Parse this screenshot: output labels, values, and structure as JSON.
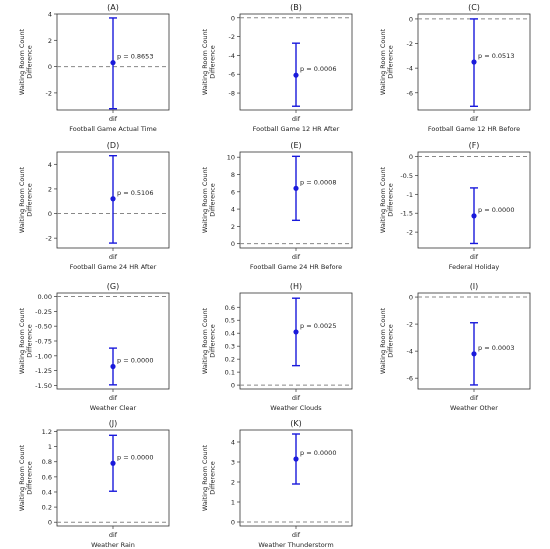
{
  "figure": {
    "panel_ylabel": [
      "Waiting Room Count",
      "Difference"
    ],
    "xtick_label": "dif"
  },
  "chart_data": [
    {
      "type": "errorbar",
      "panel": "(A)",
      "title": "(A)",
      "xlabel": "Football Game Actual Time",
      "ylabel": "Waiting Room Count Difference",
      "x": [
        "dif"
      ],
      "mean": 0.3,
      "lower": -3.2,
      "upper": 3.7,
      "annotation": "p = 0.8653",
      "reference_line": 0,
      "ylim": [
        -3.3,
        4.0
      ],
      "yticks": [
        -2,
        0,
        2,
        4
      ]
    },
    {
      "type": "errorbar",
      "panel": "(B)",
      "title": "(B)",
      "xlabel": "Football Game 12 HR After",
      "ylabel": "Waiting Room Count Difference",
      "x": [
        "dif"
      ],
      "mean": -6.1,
      "lower": -9.4,
      "upper": -2.7,
      "annotation": "p = 0.0006",
      "reference_line": 0,
      "ylim": [
        -9.8,
        0.4
      ],
      "yticks": [
        -8,
        -6,
        -4,
        -2,
        0
      ]
    },
    {
      "type": "errorbar",
      "panel": "(C)",
      "title": "(C)",
      "xlabel": "Football Game 12 HR Before",
      "ylabel": "Waiting Room Count Difference",
      "x": [
        "dif"
      ],
      "mean": -3.5,
      "lower": -7.1,
      "upper": 0.0,
      "annotation": "p = 0.0513",
      "reference_line": 0,
      "ylim": [
        -7.4,
        0.4
      ],
      "yticks": [
        -6,
        -4,
        -2,
        0
      ]
    },
    {
      "type": "errorbar",
      "panel": "(D)",
      "title": "(D)",
      "xlabel": "Football Game 24 HR After",
      "ylabel": "Waiting Room Count Difference",
      "x": [
        "dif"
      ],
      "mean": 1.2,
      "lower": -2.4,
      "upper": 4.7,
      "annotation": "p = 0.5106",
      "reference_line": 0,
      "ylim": [
        -2.8,
        5.0
      ],
      "yticks": [
        -2,
        0,
        2,
        4
      ]
    },
    {
      "type": "errorbar",
      "panel": "(E)",
      "title": "(E)",
      "xlabel": "Football Game 24 HR Before",
      "ylabel": "Waiting Room Count Difference",
      "x": [
        "dif"
      ],
      "mean": 6.4,
      "lower": 2.7,
      "upper": 10.1,
      "annotation": "p = 0.0008",
      "reference_line": 0,
      "ylim": [
        -0.5,
        10.6
      ],
      "yticks": [
        0,
        2,
        4,
        6,
        8,
        10
      ]
    },
    {
      "type": "errorbar",
      "panel": "(F)",
      "title": "(F)",
      "xlabel": "Federal Holiday",
      "ylabel": "Waiting Room Count Difference",
      "x": [
        "dif"
      ],
      "mean": -1.57,
      "lower": -2.3,
      "upper": -0.83,
      "annotation": "p = 0.0000",
      "reference_line": 0,
      "ylim": [
        -2.42,
        0.12
      ],
      "yticks": [
        -2.0,
        -1.5,
        -1.0,
        -0.5,
        0.0
      ]
    },
    {
      "type": "errorbar",
      "panel": "(G)",
      "title": "(G)",
      "xlabel": "Weather Clear",
      "ylabel": "Waiting Room Count Difference",
      "x": [
        "dif"
      ],
      "mean": -1.18,
      "lower": -1.49,
      "upper": -0.87,
      "annotation": "p = 0.0000",
      "reference_line": 0,
      "ylim": [
        -1.56,
        0.06
      ],
      "yticks": [
        -1.5,
        -1.25,
        -1.0,
        -0.75,
        -0.5,
        -0.25,
        0.0
      ],
      "ytick_labels": [
        "-1.50",
        "-1.25",
        "-1.00",
        "-0.75",
        "-0.50",
        "-0.25",
        "0.00"
      ]
    },
    {
      "type": "errorbar",
      "panel": "(H)",
      "title": "(H)",
      "xlabel": "Weather Clouds",
      "ylabel": "Waiting Room Count Difference",
      "x": [
        "dif"
      ],
      "mean": 0.41,
      "lower": 0.15,
      "upper": 0.67,
      "annotation": "p = 0.0025",
      "reference_line": 0,
      "ylim": [
        -0.03,
        0.71
      ],
      "yticks": [
        0.0,
        0.1,
        0.2,
        0.3,
        0.4,
        0.5,
        0.6
      ]
    },
    {
      "type": "errorbar",
      "panel": "(I)",
      "title": "(I)",
      "xlabel": "Weather Other",
      "ylabel": "Waiting Room Count Difference",
      "x": [
        "dif"
      ],
      "mean": -4.2,
      "lower": -6.5,
      "upper": -1.9,
      "annotation": "p = 0.0003",
      "reference_line": 0,
      "ylim": [
        -6.8,
        0.3
      ],
      "yticks": [
        -6,
        -4,
        -2,
        0
      ]
    },
    {
      "type": "errorbar",
      "panel": "(J)",
      "title": "(J)",
      "xlabel": "Weather Rain",
      "ylabel": "Waiting Room Count Difference",
      "x": [
        "dif"
      ],
      "mean": 0.78,
      "lower": 0.41,
      "upper": 1.15,
      "annotation": "p = 0.0000",
      "reference_line": 0,
      "ylim": [
        -0.05,
        1.22
      ],
      "yticks": [
        0.0,
        0.2,
        0.4,
        0.6,
        0.8,
        1.0,
        1.2
      ]
    },
    {
      "type": "errorbar",
      "panel": "(K)",
      "title": "(K)",
      "xlabel": "Weather Thunderstorm",
      "ylabel": "Waiting Room Count Difference",
      "x": [
        "dif"
      ],
      "mean": 3.15,
      "lower": 1.9,
      "upper": 4.4,
      "annotation": "p = 0.0000",
      "reference_line": 0,
      "ylim": [
        -0.2,
        4.6
      ],
      "yticks": [
        0,
        1,
        2,
        3,
        4
      ]
    }
  ]
}
